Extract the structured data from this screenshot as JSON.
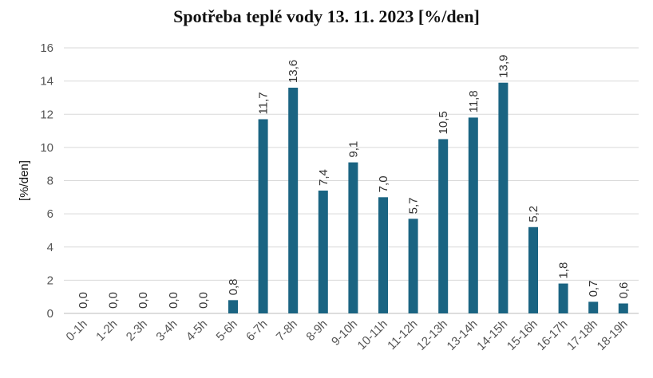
{
  "chart_data": {
    "type": "bar",
    "title": "Spotřeba teplé vody 13. 11. 2023 [%/den]",
    "xlabel": "",
    "ylabel": "[%/den]",
    "ylim": [
      0,
      16
    ],
    "yticks": [
      0,
      2,
      4,
      6,
      8,
      10,
      12,
      14,
      16
    ],
    "grid": true,
    "color": "#1a6482",
    "categories": [
      "0-1h",
      "1-2h",
      "2-3h",
      "3-4h",
      "4-5h",
      "5-6h",
      "6-7h",
      "7-8h",
      "8-9h",
      "9-10h",
      "10-11h",
      "11-12h",
      "12-13h",
      "13-14h",
      "14-15h",
      "15-16h",
      "16-17h",
      "17-18h",
      "18-19h"
    ],
    "values": [
      0.0,
      0.0,
      0.0,
      0.0,
      0.0,
      0.8,
      11.7,
      13.6,
      7.4,
      9.1,
      7.0,
      5.7,
      10.5,
      11.8,
      13.9,
      5.2,
      1.8,
      0.7,
      0.6
    ],
    "data_labels": [
      "0,0",
      "0,0",
      "0,0",
      "0,0",
      "0,0",
      "0,8",
      "11,7",
      "13,6",
      "7,4",
      "9,1",
      "7,0",
      "5,7",
      "10,5",
      "11,8",
      "13,9",
      "5,2",
      "1,8",
      "0,7",
      "0,6"
    ]
  }
}
